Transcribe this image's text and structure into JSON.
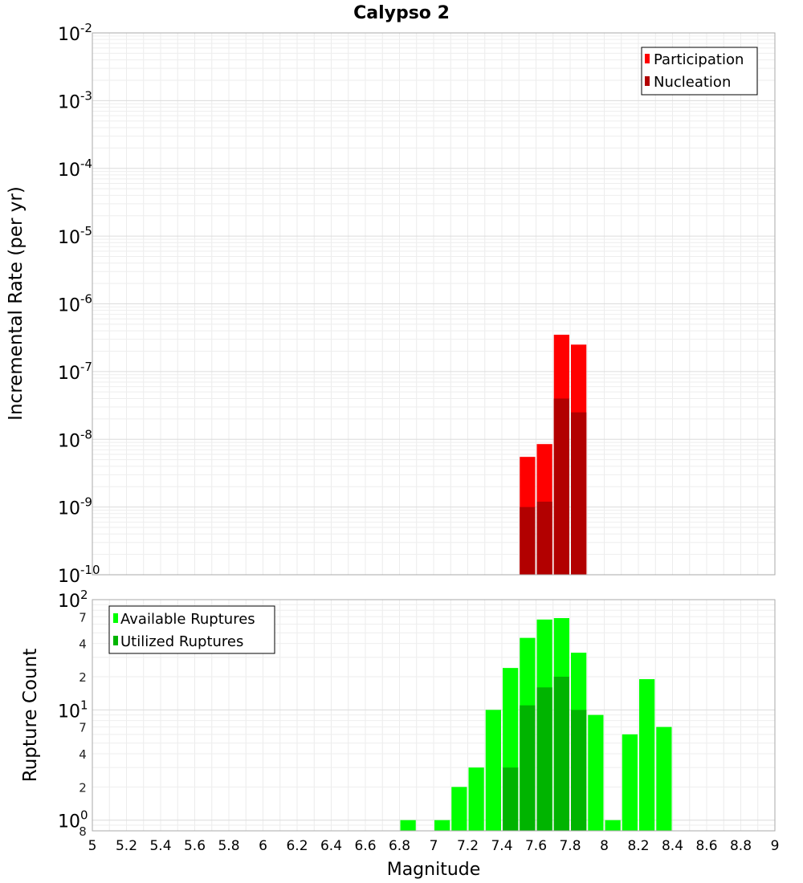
{
  "chart_data": [
    {
      "type": "bar",
      "title": "Calypso 2",
      "xlabel": "Magnitude",
      "ylabel": "Incremental Rate (per yr)",
      "yscale": "log",
      "xlim": [
        5,
        9
      ],
      "ylim": [
        1e-10,
        0.01
      ],
      "grid": true,
      "legend_position": "top-right",
      "series": [
        {
          "name": "Participation",
          "color": "#ff0000",
          "x": [
            7.55,
            7.65,
            7.75,
            7.85
          ],
          "values": [
            5.5e-09,
            8.5e-09,
            3.5e-07,
            2.5e-07
          ]
        },
        {
          "name": "Nucleation",
          "color": "#b20000",
          "x": [
            7.55,
            7.65,
            7.75,
            7.85
          ],
          "values": [
            1e-09,
            1.2e-09,
            4e-08,
            2.5e-08
          ]
        }
      ]
    },
    {
      "type": "bar",
      "xlabel": "Magnitude",
      "ylabel": "Rupture Count",
      "yscale": "log",
      "xlim": [
        5,
        9
      ],
      "ylim": [
        0.8,
        100
      ],
      "grid": true,
      "legend_position": "top-left",
      "series": [
        {
          "name": "Available Ruptures",
          "color": "#00ff00",
          "x": [
            6.85,
            7.05,
            7.15,
            7.25,
            7.35,
            7.45,
            7.55,
            7.65,
            7.75,
            7.85,
            7.95,
            8.05,
            8.15,
            8.25,
            8.35
          ],
          "values": [
            1,
            1,
            2,
            3,
            10,
            24,
            45,
            66,
            68,
            33,
            9,
            1,
            6,
            19,
            7
          ]
        },
        {
          "name": "Utilized Ruptures",
          "color": "#00b400",
          "x": [
            7.45,
            7.55,
            7.65,
            7.75,
            7.85
          ],
          "values": [
            3,
            11,
            16,
            20,
            10
          ]
        }
      ]
    }
  ],
  "axis_text": {
    "x_ticks": [
      "5",
      "5.2",
      "5.4",
      "5.6",
      "5.8",
      "6",
      "6.2",
      "6.4",
      "6.6",
      "6.8",
      "7",
      "7.2",
      "7.4",
      "7.6",
      "7.8",
      "8",
      "8.2",
      "8.4",
      "8.6",
      "8.8",
      "9"
    ],
    "top_y_ticks": [
      {
        "base": "10",
        "exp": "-2"
      },
      {
        "base": "10",
        "exp": "-3"
      },
      {
        "base": "10",
        "exp": "-4"
      },
      {
        "base": "10",
        "exp": "-5"
      },
      {
        "base": "10",
        "exp": "-6"
      },
      {
        "base": "10",
        "exp": "-7"
      },
      {
        "base": "10",
        "exp": "-8"
      },
      {
        "base": "10",
        "exp": "-9"
      },
      {
        "base": "10",
        "exp": "-10"
      }
    ],
    "bottom_y_major": [
      {
        "base": "10",
        "exp": "2",
        "value": 100
      },
      {
        "base": "10",
        "exp": "1",
        "value": 10
      },
      {
        "base": "10",
        "exp": "0",
        "value": 1
      }
    ],
    "bottom_y_minor": [
      {
        "label": "7",
        "value": 70
      },
      {
        "label": "4",
        "value": 40
      },
      {
        "label": "2",
        "value": 20
      },
      {
        "label": "7",
        "value": 7
      },
      {
        "label": "4",
        "value": 4
      },
      {
        "label": "2",
        "value": 2
      },
      {
        "label": "8",
        "value": 0.8
      }
    ]
  }
}
